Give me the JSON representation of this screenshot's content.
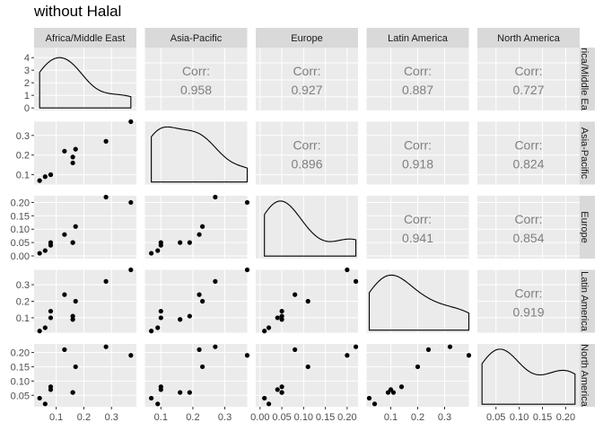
{
  "title": "without Halal",
  "colors": {
    "panel_bg": "#EBEBEB",
    "grid": "#FFFFFF",
    "strip_bg": "#D9D9D9",
    "text": "#1A1A1A",
    "tick_text": "#4D4D4D",
    "corr_text": "#7F7F7F",
    "point": "#000000"
  },
  "chart_data": {
    "type": "scatter",
    "subtype": "pairs-plot (scatterplot matrix)",
    "variables": [
      "Africa/Middle East",
      "Asia-Pacific",
      "Europe",
      "Latin America",
      "North America"
    ],
    "row_strip_labels": [
      "rica/Middle Ea",
      "Asia-Pacific",
      "Europe",
      "Latin America",
      "North America"
    ],
    "corr_label": "Corr:",
    "ranges": [
      [
        0.02,
        0.39
      ],
      [
        0.05,
        0.37
      ],
      [
        -0.01,
        0.225
      ],
      [
        0.01,
        0.39
      ],
      [
        0.01,
        0.23
      ]
    ],
    "ticks": [
      [
        0.1,
        0.2,
        0.3
      ],
      [
        0.1,
        0.2,
        0.3
      ],
      [
        0.0,
        0.05,
        0.1,
        0.15,
        0.2
      ],
      [
        0.1,
        0.2,
        0.3,
        0.4
      ],
      [
        0.05,
        0.1,
        0.15,
        0.2
      ]
    ],
    "tick_labels": [
      [
        "0.1",
        "0.2",
        "0.3"
      ],
      [
        "0.1",
        "0.2",
        "0.3"
      ],
      [
        "0.00",
        "0.05",
        "0.10",
        "0.15",
        "0.20"
      ],
      [
        "0.1",
        "0.2",
        "0.3",
        "0.4"
      ],
      [
        "0.05",
        "0.10",
        "0.15",
        "0.20"
      ]
    ],
    "density_y_ticks": [
      0,
      1,
      2,
      3,
      4
    ],
    "density_y_tick_labels": [
      "0",
      "1",
      "2",
      "3",
      "4"
    ],
    "density_y_range": [
      0,
      4.6
    ],
    "observations": [
      {
        "Africa/Middle East": 0.04,
        "Asia-Pacific": 0.07,
        "Europe": 0.01,
        "Latin America": 0.02,
        "North America": 0.04
      },
      {
        "Africa/Middle East": 0.06,
        "Asia-Pacific": 0.09,
        "Europe": 0.02,
        "Latin America": 0.04,
        "North America": 0.02
      },
      {
        "Africa/Middle East": 0.08,
        "Asia-Pacific": 0.1,
        "Europe": 0.04,
        "Latin America": 0.1,
        "North America": 0.07
      },
      {
        "Africa/Middle East": 0.08,
        "Asia-Pacific": 0.1,
        "Europe": 0.05,
        "Latin America": 0.14,
        "North America": 0.08
      },
      {
        "Africa/Middle East": 0.13,
        "Asia-Pacific": 0.22,
        "Europe": 0.08,
        "Latin America": 0.24,
        "North America": 0.21
      },
      {
        "Africa/Middle East": 0.16,
        "Asia-Pacific": 0.16,
        "Europe": 0.05,
        "Latin America": 0.09,
        "North America": 0.06
      },
      {
        "Africa/Middle East": 0.16,
        "Asia-Pacific": 0.19,
        "Europe": 0.05,
        "Latin America": 0.11,
        "North America": 0.06
      },
      {
        "Africa/Middle East": 0.17,
        "Asia-Pacific": 0.23,
        "Europe": 0.11,
        "Latin America": 0.2,
        "North America": 0.15
      },
      {
        "Africa/Middle East": 0.28,
        "Asia-Pacific": 0.27,
        "Europe": 0.22,
        "Latin America": 0.32,
        "North America": 0.22
      },
      {
        "Africa/Middle East": 0.37,
        "Asia-Pacific": 0.37,
        "Europe": 0.2,
        "Latin America": 0.39,
        "North America": 0.19
      }
    ],
    "correlations": [
      {
        "row": 0,
        "col": 1,
        "value": "0.958"
      },
      {
        "row": 0,
        "col": 2,
        "value": "0.927"
      },
      {
        "row": 0,
        "col": 3,
        "value": "0.887"
      },
      {
        "row": 0,
        "col": 4,
        "value": "0.727"
      },
      {
        "row": 1,
        "col": 2,
        "value": "0.896"
      },
      {
        "row": 1,
        "col": 3,
        "value": "0.918"
      },
      {
        "row": 1,
        "col": 4,
        "value": "0.824"
      },
      {
        "row": 2,
        "col": 3,
        "value": "0.941"
      },
      {
        "row": 2,
        "col": 4,
        "value": "0.854"
      },
      {
        "row": 3,
        "col": 4,
        "value": "0.919"
      }
    ],
    "grid": true
  }
}
